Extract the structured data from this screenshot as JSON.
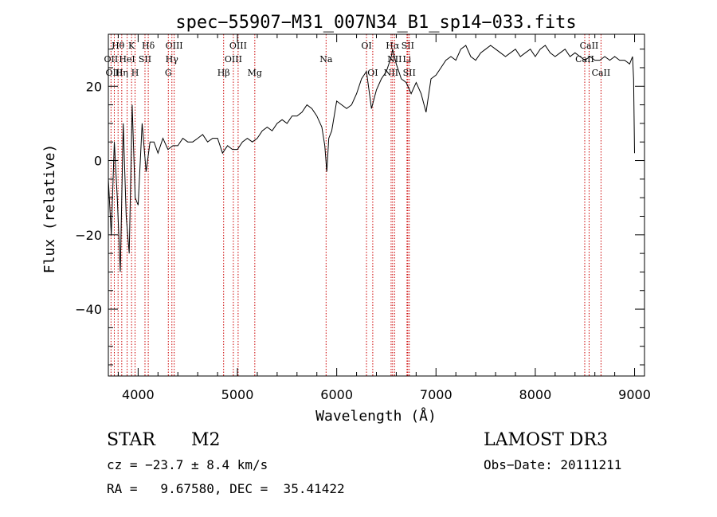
{
  "chart_data": {
    "type": "line",
    "title": "spec−55907−M31_007N34_B1_sp14−033.fits",
    "xlabel": "Wavelength (Å)",
    "ylabel": "Flux (relative)",
    "xlim": [
      3700,
      9100
    ],
    "ylim": [
      -58,
      34
    ],
    "xticks": [
      4000,
      5000,
      6000,
      7000,
      8000,
      9000
    ],
    "yticks": [
      -40,
      -20,
      0,
      20
    ],
    "series": [
      {
        "x": [
          3700,
          3730,
          3760,
          3790,
          3820,
          3850,
          3880,
          3910,
          3940,
          3970,
          4000,
          4040,
          4080,
          4120,
          4160,
          4200,
          4250,
          4300,
          4350,
          4400,
          4450,
          4500,
          4550,
          4600,
          4650,
          4700,
          4750,
          4800,
          4850,
          4900,
          4950,
          5000,
          5050,
          5100,
          5150,
          5200,
          5250,
          5300,
          5350,
          5400,
          5450,
          5500,
          5550,
          5600,
          5650,
          5700,
          5750,
          5800,
          5850,
          5880,
          5900,
          5920,
          5950,
          6000,
          6050,
          6100,
          6150,
          6200,
          6250,
          6300,
          6350,
          6400,
          6450,
          6500,
          6550,
          6563,
          6600,
          6650,
          6700,
          6750,
          6800,
          6850,
          6900,
          6950,
          7000,
          7050,
          7100,
          7150,
          7200,
          7250,
          7300,
          7350,
          7400,
          7450,
          7500,
          7550,
          7600,
          7650,
          7700,
          7750,
          7800,
          7850,
          7900,
          7950,
          8000,
          8050,
          8100,
          8150,
          8200,
          8250,
          8300,
          8350,
          8400,
          8450,
          8500,
          8550,
          8600,
          8650,
          8700,
          8750,
          8800,
          8850,
          8900,
          8950,
          8980,
          8990,
          9000
        ],
        "y": [
          -5,
          -20,
          5,
          -10,
          -30,
          10,
          -15,
          -25,
          15,
          -10,
          -12,
          10,
          -3,
          5,
          5,
          2,
          6,
          3,
          4,
          4,
          6,
          5,
          5,
          6,
          7,
          5,
          6,
          6,
          2,
          4,
          3,
          3,
          5,
          6,
          5,
          6,
          8,
          9,
          8,
          10,
          11,
          10,
          12,
          12,
          13,
          15,
          14,
          12,
          9,
          4,
          -3,
          6,
          8,
          16,
          15,
          14,
          15,
          18,
          22,
          24,
          14,
          19,
          22,
          24,
          28,
          30,
          26,
          22,
          21,
          18,
          21,
          18,
          13,
          22,
          23,
          25,
          27,
          28,
          27,
          30,
          31,
          28,
          27,
          29,
          30,
          31,
          30,
          29,
          28,
          29,
          30,
          28,
          29,
          30,
          28,
          30,
          31,
          29,
          28,
          29,
          30,
          28,
          29,
          28,
          27,
          28,
          27,
          27,
          28,
          27,
          28,
          27,
          27,
          26,
          28,
          22,
          2
        ]
      }
    ],
    "lines": [
      {
        "label": "Hθ",
        "x": 3798,
        "row": 1
      },
      {
        "label": "OII",
        "x": 3727,
        "row": 2
      },
      {
        "label": "OIII",
        "x": 3760,
        "row": 3
      },
      {
        "label": "K",
        "x": 3934,
        "row": 1
      },
      {
        "label": "HeI",
        "x": 3889,
        "row": 2
      },
      {
        "label": "Hη",
        "x": 3835,
        "row": 3
      },
      {
        "label": "H",
        "x": 3969,
        "row": 3
      },
      {
        "label": "Hδ",
        "x": 4102,
        "row": 1
      },
      {
        "label": "SII",
        "x": 4069,
        "row": 2
      },
      {
        "label": "OIII",
        "x": 4363,
        "row": 1
      },
      {
        "label": "Hγ",
        "x": 4340,
        "row": 2
      },
      {
        "label": "G",
        "x": 4304,
        "row": 3
      },
      {
        "label": "Hβ",
        "x": 4861,
        "row": 3
      },
      {
        "label": "OIII",
        "x": 5007,
        "row": 1
      },
      {
        "label": "OIII",
        "x": 4959,
        "row": 2
      },
      {
        "label": "Mg",
        "x": 5175,
        "row": 3
      },
      {
        "label": "Na",
        "x": 5893,
        "row": 2
      },
      {
        "label": "OI",
        "x": 6300,
        "row": 1
      },
      {
        "label": "OI",
        "x": 6363,
        "row": 3
      },
      {
        "label": "Hα",
        "x": 6563,
        "row": 1
      },
      {
        "label": "NII",
        "x": 6548,
        "row": 3
      },
      {
        "label": "NII",
        "x": 6583,
        "row": 2
      },
      {
        "label": "Li",
        "x": 6708,
        "row": 2
      },
      {
        "label": "SII",
        "x": 6716,
        "row": 1
      },
      {
        "label": "SII",
        "x": 6731,
        "row": 3
      },
      {
        "label": "CaII",
        "x": 8542,
        "row": 1
      },
      {
        "label": "CaII",
        "x": 8498,
        "row": 2
      },
      {
        "label": "CaII",
        "x": 8662,
        "row": 3
      }
    ],
    "colors": {
      "axis": "#000000",
      "line_markers": "#cc0000",
      "spectrum": "#000000"
    }
  },
  "info": {
    "object_class": "STAR",
    "subclass": "M2",
    "redshift": "cz = −23.7 ± 8.4 km/s",
    "coords": "RA =   9.67580, DEC =  35.41422",
    "survey": "LAMOST DR3",
    "obs_date": "Obs−Date: 20111211"
  }
}
